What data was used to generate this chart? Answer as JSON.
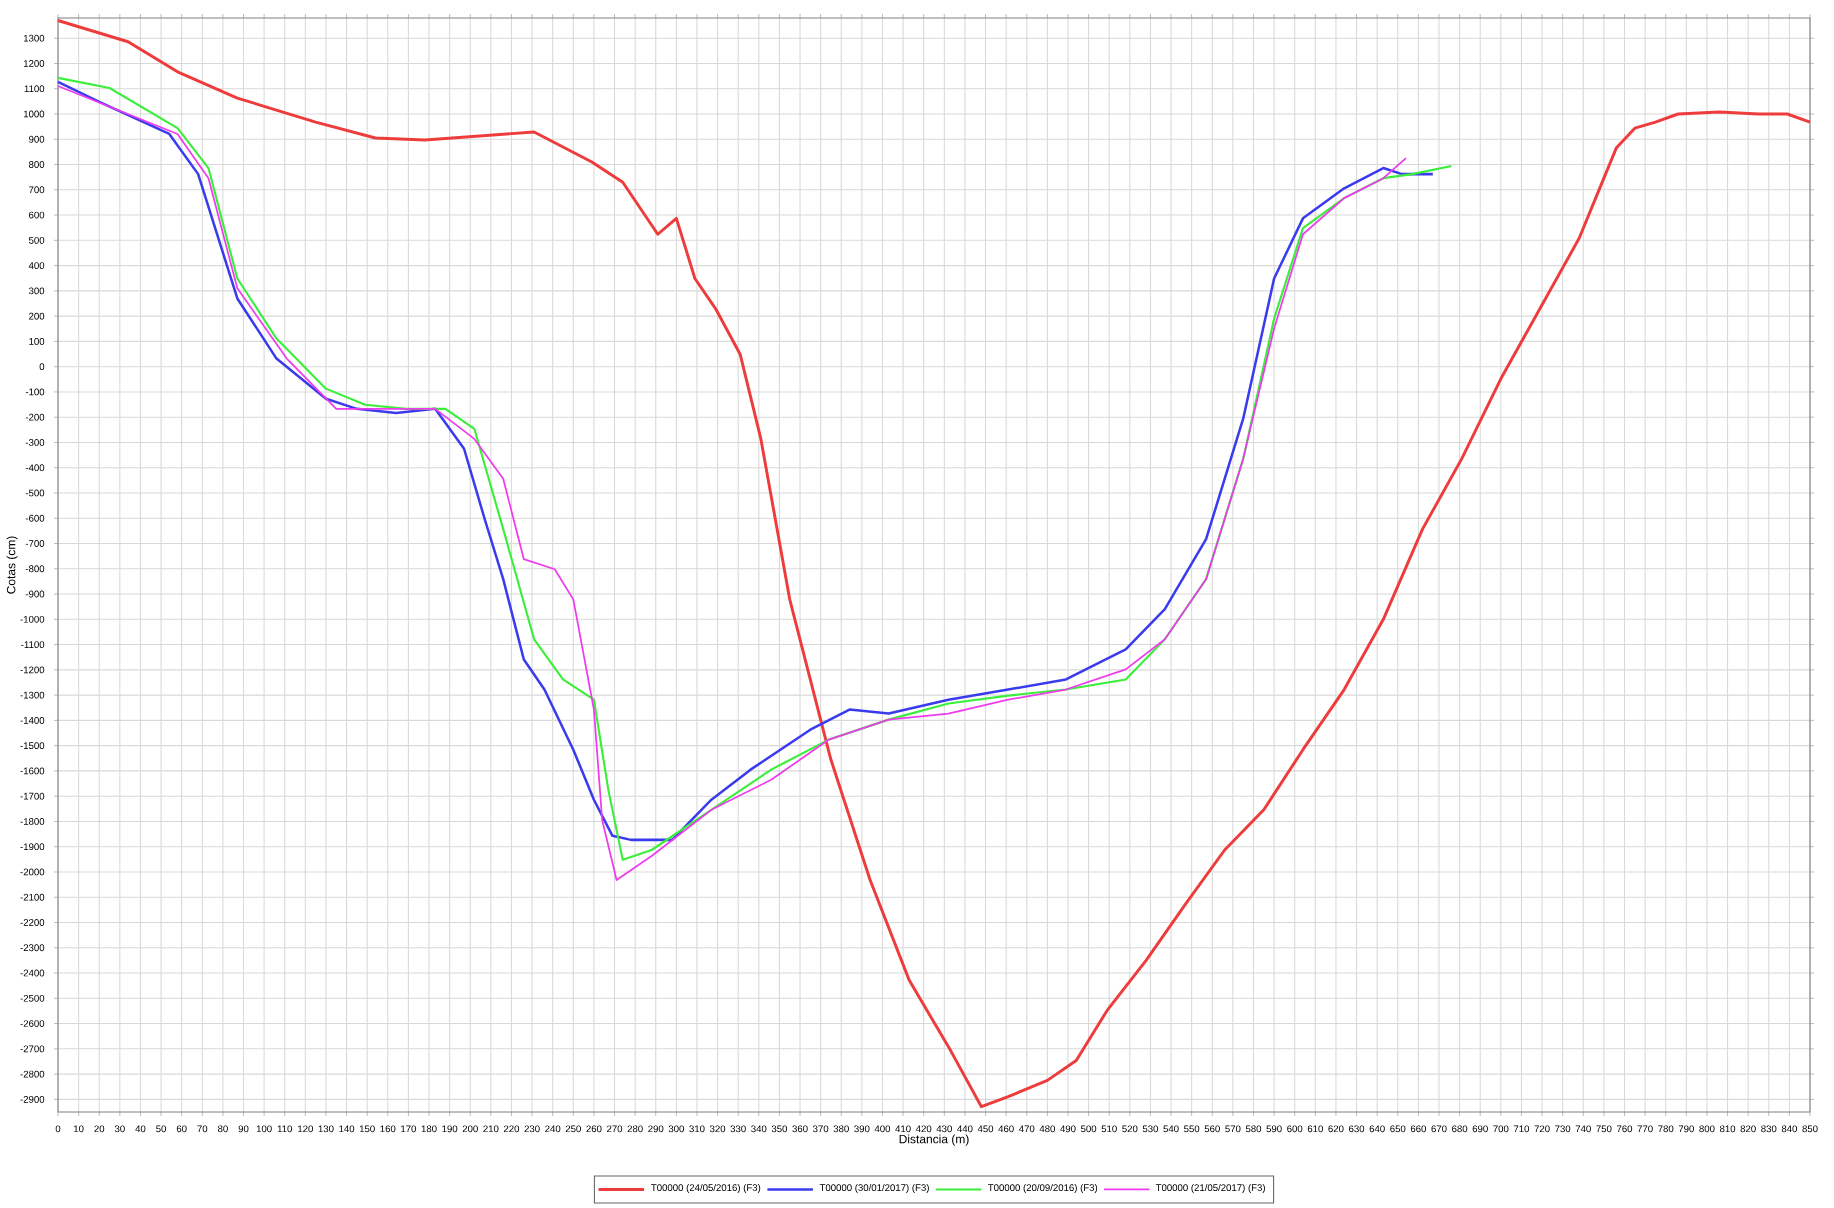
{
  "chart_data": {
    "type": "line",
    "xlabel": "Distancia (m)",
    "ylabel": "Cotas (cm)",
    "xlim": [
      0,
      850
    ],
    "ylim": [
      -2950,
      1380
    ],
    "xticks": [
      0,
      10,
      20,
      30,
      40,
      50,
      60,
      70,
      80,
      90,
      100,
      110,
      120,
      130,
      140,
      150,
      160,
      170,
      180,
      190,
      200,
      210,
      220,
      230,
      240,
      250,
      260,
      270,
      280,
      290,
      300,
      310,
      320,
      330,
      340,
      350,
      360,
      370,
      380,
      390,
      400,
      410,
      420,
      430,
      440,
      450,
      460,
      470,
      480,
      490,
      500,
      510,
      520,
      530,
      540,
      550,
      560,
      570,
      580,
      590,
      600,
      610,
      620,
      630,
      640,
      650,
      660,
      670,
      680,
      690,
      700,
      710,
      720,
      730,
      740,
      750,
      760,
      770,
      780,
      790,
      800,
      810,
      820,
      830,
      840,
      850
    ],
    "yticks": [
      -2900,
      -2800,
      -2700,
      -2600,
      -2500,
      -2400,
      -2300,
      -2200,
      -2100,
      -2000,
      -1900,
      -1800,
      -1700,
      -1600,
      -1500,
      -1400,
      -1300,
      -1200,
      -1100,
      -1000,
      -900,
      -800,
      -700,
      -600,
      -500,
      -400,
      -300,
      -200,
      -100,
      0,
      100,
      200,
      300,
      400,
      500,
      600,
      700,
      800,
      900,
      1000,
      1100,
      1200,
      1300
    ],
    "grid": true,
    "legend": "bottom",
    "marker": "none",
    "line_style": "solid",
    "series": [
      {
        "name": "T00000 (24/05/2016) (F3)",
        "color": "#ee3b3b",
        "x": [
          0,
          34,
          58,
          87,
          125,
          154,
          178,
          231,
          259,
          274,
          291,
          300,
          309,
          319,
          331,
          341,
          355,
          375,
          394,
          413,
          433,
          448,
          461,
          480,
          494,
          509,
          528,
          547,
          566,
          585,
          604,
          624,
          643,
          662,
          681,
          700,
          719,
          738,
          746,
          756,
          765,
          775,
          786,
          806,
          825,
          839,
          850
        ],
        "values": [
          1370,
          1286,
          1167,
          1063,
          968,
          905,
          897,
          929,
          810,
          730,
          524,
          587,
          349,
          230,
          48,
          -286,
          -921,
          -1556,
          -2032,
          -2429,
          -2706,
          -2929,
          -2889,
          -2825,
          -2746,
          -2548,
          -2349,
          -2127,
          -1913,
          -1754,
          -1516,
          -1278,
          -1000,
          -643,
          -365,
          -48,
          230,
          508,
          667,
          865,
          944,
          968,
          1000,
          1008,
          1000,
          1000,
          968
        ]
      },
      {
        "name": "T00000 (30/01/2017) (F3)",
        "color": "#3b3bee",
        "x": [
          0,
          20,
          54,
          68,
          87,
          106,
          130,
          145,
          164,
          183,
          197,
          207,
          216,
          226,
          236,
          250,
          260,
          269,
          278,
          298,
          317,
          336,
          365,
          384,
          403,
          432,
          461,
          489,
          518,
          537,
          557,
          575,
          590,
          604,
          624,
          643,
          652,
          667
        ],
        "values": [
          1127,
          1048,
          921,
          762,
          270,
          32,
          -127,
          -167,
          -183,
          -167,
          -325,
          -603,
          -841,
          -1159,
          -1278,
          -1516,
          -1714,
          -1857,
          -1873,
          -1873,
          -1714,
          -1595,
          -1437,
          -1357,
          -1373,
          -1318,
          -1278,
          -1238,
          -1119,
          -960,
          -683,
          -206,
          349,
          587,
          706,
          786,
          762,
          762
        ]
      },
      {
        "name": "T00000 (20/09/2016) (F3)",
        "color": "#3bee3b",
        "x": [
          0,
          25,
          58,
          73,
          87,
          106,
          130,
          149,
          169,
          188,
          202,
          216,
          231,
          245,
          260,
          267,
          274,
          288,
          317,
          346,
          374,
          403,
          432,
          461,
          489,
          518,
          537,
          557,
          575,
          590,
          604,
          624,
          643,
          657,
          676
        ],
        "values": [
          1143,
          1103,
          944,
          786,
          349,
          111,
          -87,
          -151,
          -167,
          -167,
          -246,
          -643,
          -1079,
          -1238,
          -1318,
          -1675,
          -1952,
          -1913,
          -1754,
          -1595,
          -1476,
          -1397,
          -1333,
          -1302,
          -1278,
          -1238,
          -1079,
          -841,
          -365,
          190,
          548,
          667,
          746,
          762,
          794
        ]
      },
      {
        "name": "T00000 (21/05/2017) (F3)",
        "color": "#ee3bee",
        "x": [
          0,
          58,
          73,
          87,
          111,
          135,
          159,
          183,
          202,
          216,
          226,
          241,
          250,
          260,
          264,
          271,
          288,
          317,
          346,
          374,
          403,
          432,
          461,
          489,
          518,
          537,
          557,
          575,
          590,
          604,
          624,
          643,
          654
        ],
        "values": [
          1111,
          921,
          746,
          310,
          32,
          -167,
          -167,
          -167,
          -286,
          -444,
          -762,
          -802,
          -921,
          -1357,
          -1794,
          -2032,
          -1937,
          -1754,
          -1635,
          -1476,
          -1397,
          -1373,
          -1318,
          -1278,
          -1198,
          -1079,
          -841,
          -365,
          151,
          524,
          667,
          746,
          825
        ]
      }
    ]
  }
}
